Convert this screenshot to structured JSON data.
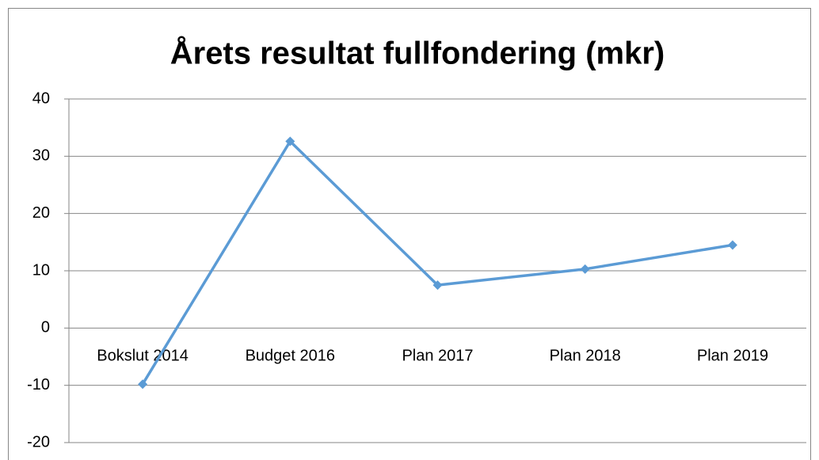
{
  "chart_data": {
    "type": "line",
    "title": "Årets resultat fullfondering (mkr)",
    "categories": [
      "Bokslut 2014",
      "Budget 2016",
      "Plan 2017",
      "Plan 2018",
      "Plan 2019"
    ],
    "series": [
      {
        "name": "Årets resultat",
        "color": "#5b9bd5",
        "values": [
          -9.8,
          32.6,
          7.5,
          10.3,
          14.5
        ]
      }
    ],
    "ylim": [
      -20,
      40
    ],
    "yticks": [
      -20,
      -10,
      0,
      10,
      20,
      30,
      40
    ],
    "grid": true
  }
}
